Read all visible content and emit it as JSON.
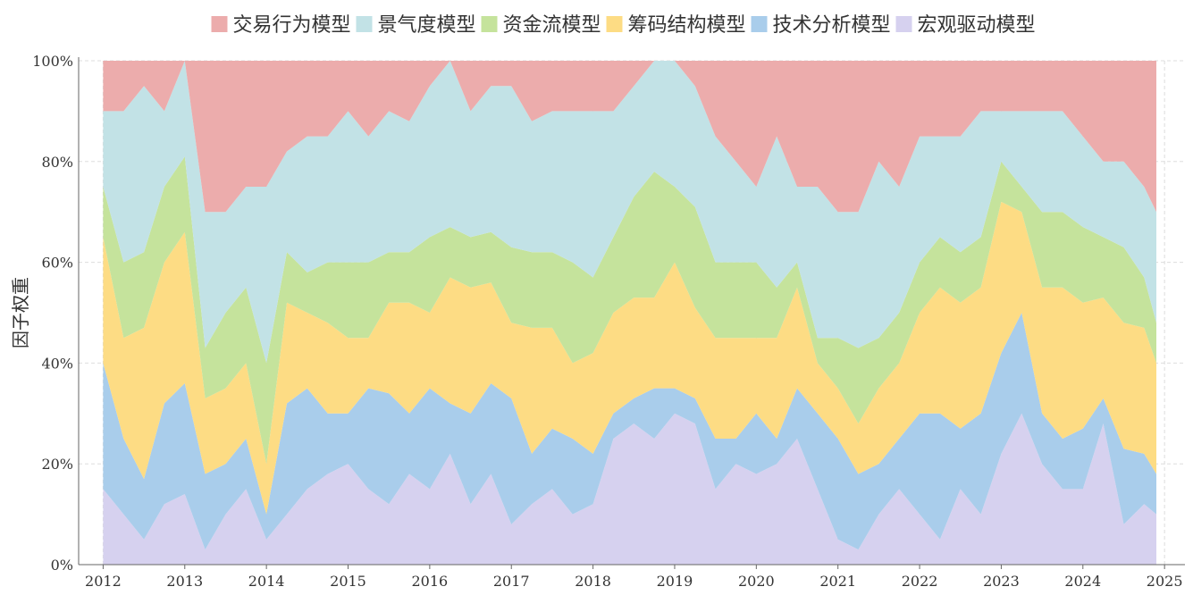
{
  "chart_data": {
    "type": "area",
    "stacking": "percent",
    "title": "",
    "xlabel": "",
    "ylabel": "因子权重",
    "ylim": [
      0,
      100
    ],
    "xlim": [
      2011.7,
      2025.25
    ],
    "grid": true,
    "legend": "top",
    "x_ticks": [
      "2012",
      "2013",
      "2014",
      "2015",
      "2016",
      "2017",
      "2018",
      "2019",
      "2020",
      "2021",
      "2022",
      "2023",
      "2024",
      "2025"
    ],
    "y_ticks": [
      "0%",
      "20%",
      "40%",
      "60%",
      "80%",
      "100%"
    ],
    "x": [
      2012.0,
      2012.25,
      2012.5,
      2012.75,
      2013.0,
      2013.25,
      2013.5,
      2013.75,
      2014.0,
      2014.25,
      2014.5,
      2014.75,
      2015.0,
      2015.25,
      2015.5,
      2015.75,
      2016.0,
      2016.25,
      2016.5,
      2016.75,
      2017.0,
      2017.25,
      2017.5,
      2017.75,
      2018.0,
      2018.25,
      2018.5,
      2018.75,
      2019.0,
      2019.25,
      2019.5,
      2019.75,
      2020.0,
      2020.25,
      2020.5,
      2020.75,
      2021.0,
      2021.25,
      2021.5,
      2021.75,
      2022.0,
      2022.25,
      2022.5,
      2022.75,
      2023.0,
      2023.25,
      2023.5,
      2023.75,
      2024.0,
      2024.25,
      2024.5,
      2024.75,
      2024.9
    ],
    "series": [
      {
        "name": "宏观驱动模型",
        "color": "#d6d1ef",
        "values": [
          15,
          10,
          5,
          12,
          14,
          3,
          10,
          15,
          5,
          10,
          15,
          18,
          20,
          15,
          12,
          18,
          15,
          22,
          12,
          18,
          8,
          12,
          15,
          10,
          12,
          25,
          28,
          25,
          30,
          28,
          15,
          20,
          18,
          20,
          25,
          15,
          5,
          3,
          10,
          15,
          10,
          5,
          15,
          10,
          22,
          30,
          20,
          15,
          15,
          28,
          8,
          12,
          10
        ]
      },
      {
        "name": "技术分析模型",
        "color": "#a9cdeb",
        "values": [
          25,
          15,
          12,
          20,
          22,
          15,
          10,
          10,
          5,
          22,
          20,
          12,
          10,
          20,
          22,
          12,
          20,
          10,
          18,
          18,
          25,
          10,
          12,
          15,
          10,
          5,
          5,
          10,
          5,
          5,
          10,
          5,
          12,
          5,
          10,
          15,
          20,
          15,
          10,
          10,
          20,
          25,
          12,
          20,
          20,
          20,
          10,
          10,
          12,
          5,
          15,
          10,
          8
        ]
      },
      {
        "name": "筹码结构模型",
        "color": "#fddc84",
        "values": [
          25,
          20,
          30,
          28,
          30,
          15,
          15,
          15,
          10,
          20,
          15,
          18,
          15,
          10,
          18,
          22,
          15,
          25,
          25,
          20,
          15,
          25,
          20,
          15,
          20,
          20,
          20,
          18,
          25,
          18,
          20,
          20,
          15,
          20,
          20,
          10,
          10,
          10,
          15,
          15,
          20,
          25,
          25,
          25,
          30,
          20,
          25,
          30,
          25,
          20,
          25,
          25,
          22
        ]
      },
      {
        "name": "资金流模型",
        "color": "#c5e39c",
        "values": [
          10,
          15,
          15,
          15,
          15,
          10,
          15,
          15,
          20,
          10,
          8,
          12,
          15,
          15,
          10,
          10,
          15,
          10,
          10,
          10,
          15,
          15,
          15,
          20,
          15,
          15,
          20,
          25,
          15,
          20,
          15,
          15,
          15,
          10,
          5,
          5,
          10,
          15,
          10,
          10,
          10,
          10,
          10,
          10,
          8,
          5,
          15,
          15,
          15,
          12,
          15,
          10,
          8
        ]
      },
      {
        "name": "景气度模型",
        "color": "#c2e2e6",
        "values": [
          15,
          30,
          33,
          15,
          19,
          27,
          20,
          20,
          35,
          20,
          27,
          25,
          30,
          25,
          28,
          26,
          30,
          33,
          25,
          29,
          32,
          26,
          28,
          30,
          33,
          25,
          22,
          22,
          25,
          24,
          25,
          20,
          15,
          30,
          15,
          30,
          25,
          27,
          35,
          25,
          25,
          20,
          23,
          25,
          10,
          15,
          20,
          20,
          18,
          15,
          17,
          18,
          22
        ]
      },
      {
        "name": "交易行为模型",
        "color": "#ecacac",
        "values": [
          10,
          10,
          5,
          10,
          0,
          30,
          30,
          25,
          25,
          18,
          15,
          15,
          10,
          15,
          10,
          12,
          5,
          0,
          10,
          5,
          5,
          12,
          10,
          10,
          10,
          10,
          5,
          0,
          0,
          5,
          15,
          20,
          25,
          15,
          25,
          25,
          30,
          30,
          20,
          25,
          15,
          15,
          15,
          10,
          10,
          10,
          10,
          10,
          15,
          20,
          20,
          25,
          30
        ]
      }
    ]
  }
}
